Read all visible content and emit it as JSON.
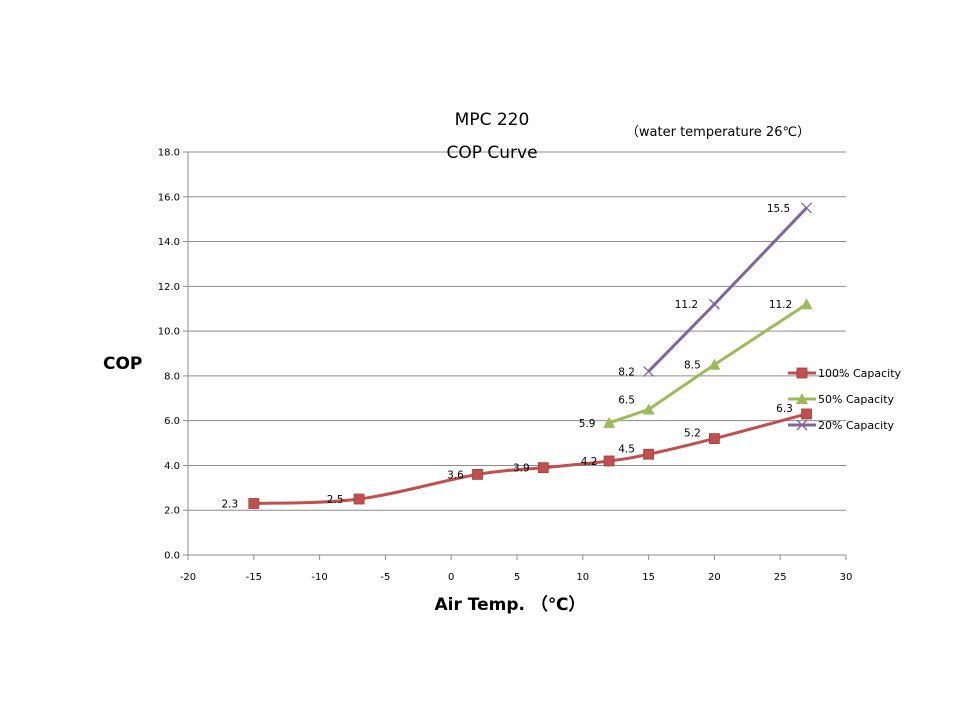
{
  "chart_data": {
    "type": "line",
    "title": "MPC 220",
    "subtitle": "COP Curve",
    "annotation": "（water  temperature 26℃）",
    "xlabel": "Air Temp.  （℃）",
    "ylabel": "COP",
    "xlim": [
      -20,
      30
    ],
    "ylim": [
      0,
      18
    ],
    "x_ticks": [
      "-20",
      "-15",
      "-10",
      "-5",
      "0",
      "5",
      "10",
      "15",
      "20",
      "25",
      "30"
    ],
    "y_ticks": [
      "0.0",
      "2.0",
      "4.0",
      "6.0",
      "8.0",
      "10.0",
      "12.0",
      "14.0",
      "16.0",
      "18.0"
    ],
    "grid": "horizontal",
    "legend_position": "right",
    "colors": {
      "100": "#c0504d",
      "50": "#9bbb59",
      "20": "#8064a2"
    },
    "series": [
      {
        "name": "100% Capacity",
        "marker": "square",
        "color": "#c0504d",
        "smooth": true,
        "x": [
          -15,
          -7,
          2,
          7,
          12,
          15,
          20,
          27
        ],
        "y": [
          2.3,
          2.5,
          3.6,
          3.9,
          4.2,
          4.5,
          5.2,
          6.3
        ],
        "labels": [
          "2.3",
          "2.5",
          "3.6",
          "3.9",
          "4.2",
          "4.5",
          "5.2",
          "6.3"
        ]
      },
      {
        "name": "50% Capacity",
        "marker": "triangle",
        "color": "#9bbb59",
        "smooth": false,
        "x": [
          12,
          15,
          20,
          27
        ],
        "y": [
          5.9,
          6.5,
          8.5,
          11.2
        ],
        "labels": [
          "5.9",
          "6.5",
          "8.5",
          "11.2"
        ]
      },
      {
        "name": "20% Capacity",
        "marker": "x",
        "color": "#8064a2",
        "smooth": false,
        "x": [
          15,
          20,
          27
        ],
        "y": [
          8.2,
          11.2,
          15.5
        ],
        "labels": [
          "8.2",
          "11.2",
          "15.5"
        ]
      }
    ]
  }
}
